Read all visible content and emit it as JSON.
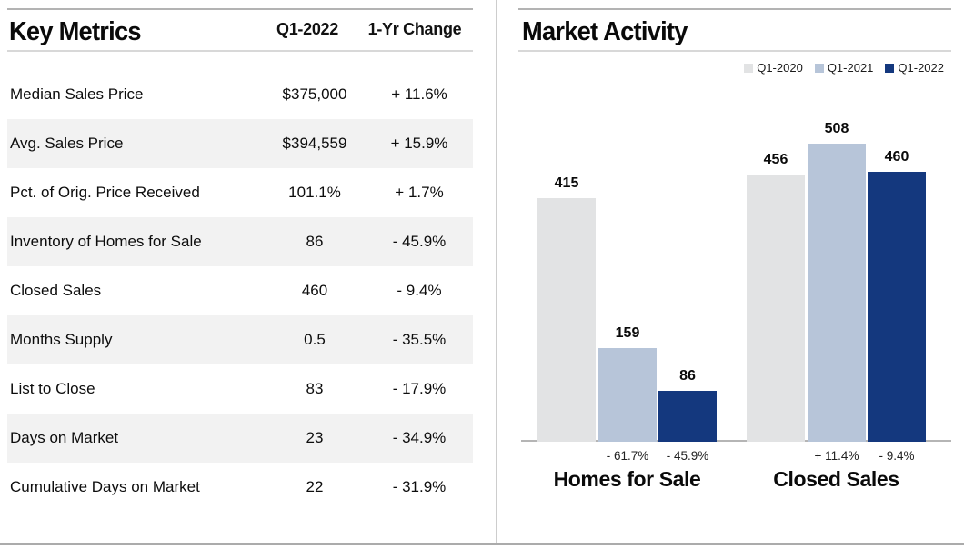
{
  "key_metrics": {
    "title": "Key Metrics",
    "columns": [
      "Q1-2022",
      "1-Yr Change"
    ],
    "rows": [
      {
        "label": "Median Sales Price",
        "value": "$375,000",
        "change": "+ 11.6%"
      },
      {
        "label": "Avg. Sales Price",
        "value": "$394,559",
        "change": "+ 15.9%"
      },
      {
        "label": "Pct. of Orig. Price Received",
        "value": "101.1%",
        "change": "+ 1.7%"
      },
      {
        "label": "Inventory of Homes for Sale",
        "value": "86",
        "change": "- 45.9%"
      },
      {
        "label": "Closed Sales",
        "value": "460",
        "change": "- 9.4%"
      },
      {
        "label": "Months Supply",
        "value": "0.5",
        "change": "- 35.5%"
      },
      {
        "label": "List to Close",
        "value": "83",
        "change": "- 17.9%"
      },
      {
        "label": "Days on Market",
        "value": "23",
        "change": "- 34.9%"
      },
      {
        "label": "Cumulative Days on Market",
        "value": "22",
        "change": "- 31.9%"
      }
    ]
  },
  "market_activity": {
    "title": "Market Activity"
  },
  "chart_data": {
    "type": "bar",
    "title": "Market Activity",
    "categories": [
      "Homes for Sale",
      "Closed Sales"
    ],
    "series": [
      {
        "name": "Q1-2020",
        "color": "#e2e3e4",
        "values": [
          415,
          456
        ]
      },
      {
        "name": "Q1-2021",
        "color": "#b7c5d9",
        "values": [
          159,
          508
        ]
      },
      {
        "name": "Q1-2022",
        "color": "#14387e",
        "values": [
          86,
          460
        ]
      }
    ],
    "pct_change_labels": [
      [
        "",
        "- 61.7%",
        "- 45.9%"
      ],
      [
        "",
        "+ 11.4%",
        "- 9.4%"
      ]
    ],
    "value_labels": true,
    "legend_position": "top-right",
    "grid": false,
    "ylim": [
      0,
      560
    ],
    "xlabel": "",
    "ylabel": ""
  }
}
